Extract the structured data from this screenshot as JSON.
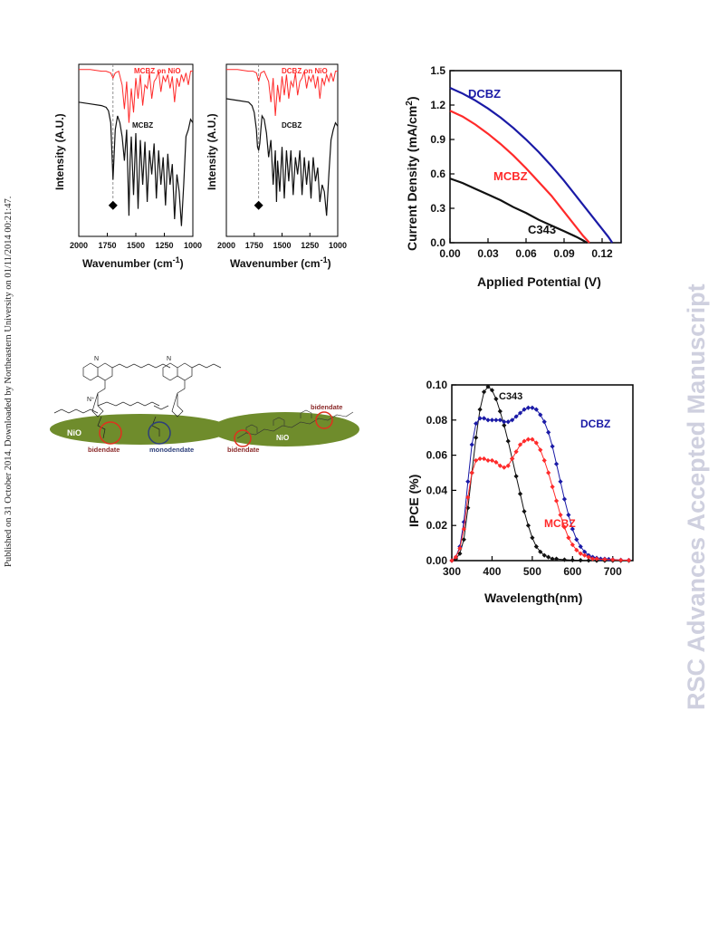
{
  "sidebar": {
    "left_note": "Published on 31 October 2014. Downloaded by Northeastern University on 01/11/2014 00:21:47.",
    "right_watermark": "RSC Advances Accepted Manuscript"
  },
  "colors": {
    "red": "#ff2a2a",
    "blue": "#1a1aa6",
    "black": "#111111",
    "nio_green": "#6f8c2c"
  },
  "chart_data": [
    {
      "type": "line",
      "id": "ftir-mcbz",
      "xlabel": "Wavenumber (cm⁻¹)",
      "ylabel": "Intensity (A.U.)",
      "xlim": [
        2000,
        1000
      ],
      "x_reversed": true,
      "xticks": [
        2000,
        1750,
        1500,
        1250,
        1000
      ],
      "yticks": [],
      "marker_x": 1700,
      "series": [
        {
          "name": "MCBZ on NiO",
          "color": "#ff2a2a",
          "x": [
            2000,
            1900,
            1800,
            1760,
            1720,
            1700,
            1680,
            1650,
            1620,
            1600,
            1580,
            1560,
            1540,
            1520,
            1500,
            1480,
            1460,
            1440,
            1420,
            1400,
            1380,
            1360,
            1340,
            1320,
            1300,
            1280,
            1260,
            1240,
            1220,
            1200,
            1180,
            1160,
            1140,
            1120,
            1100,
            1080,
            1060,
            1040,
            1020,
            1000
          ],
          "y": [
            0.97,
            0.97,
            0.96,
            0.96,
            0.95,
            0.92,
            0.95,
            0.96,
            0.88,
            0.74,
            0.9,
            0.66,
            0.86,
            0.72,
            0.92,
            0.8,
            0.94,
            0.76,
            0.88,
            0.86,
            0.95,
            0.8,
            0.9,
            0.92,
            0.96,
            0.84,
            0.93,
            0.9,
            0.94,
            0.86,
            0.93,
            0.78,
            0.92,
            0.87,
            0.94,
            0.9,
            0.95,
            0.88,
            0.96,
            0.96
          ]
        },
        {
          "name": "MCBZ",
          "color": "#111111",
          "x": [
            2000,
            1900,
            1800,
            1760,
            1740,
            1720,
            1710,
            1700,
            1690,
            1680,
            1660,
            1640,
            1620,
            1600,
            1580,
            1560,
            1550,
            1540,
            1520,
            1500,
            1480,
            1460,
            1440,
            1420,
            1400,
            1380,
            1360,
            1340,
            1320,
            1300,
            1280,
            1260,
            1240,
            1220,
            1200,
            1180,
            1160,
            1140,
            1120,
            1100,
            1080,
            1060,
            1040,
            1020,
            1000
          ],
          "y": [
            0.78,
            0.77,
            0.76,
            0.75,
            0.73,
            0.66,
            0.5,
            0.33,
            0.48,
            0.62,
            0.7,
            0.66,
            0.58,
            0.44,
            0.62,
            0.12,
            0.44,
            0.58,
            0.24,
            0.6,
            0.16,
            0.56,
            0.3,
            0.55,
            0.2,
            0.5,
            0.36,
            0.54,
            0.22,
            0.5,
            0.3,
            0.46,
            0.18,
            0.48,
            0.3,
            0.42,
            0.1,
            0.36,
            0.26,
            0.06,
            0.3,
            0.58,
            0.62,
            0.68,
            0.66
          ]
        }
      ],
      "annotations": [
        {
          "text": "MCBZ on NiO",
          "color": "#ff2a2a"
        },
        {
          "text": "MCBZ",
          "color": "#111111"
        }
      ]
    },
    {
      "type": "line",
      "id": "ftir-dcbz",
      "xlabel": "Wavenumber (cm⁻¹)",
      "ylabel": "Intensity (A.U.)",
      "xlim": [
        2000,
        1000
      ],
      "x_reversed": true,
      "xticks": [
        2000,
        1750,
        1500,
        1250,
        1000
      ],
      "yticks": [],
      "marker_x": 1710,
      "series": [
        {
          "name": "DCBZ on NiO",
          "color": "#ff2a2a",
          "x": [
            2000,
            1900,
            1800,
            1760,
            1730,
            1710,
            1690,
            1660,
            1620,
            1600,
            1580,
            1560,
            1540,
            1520,
            1500,
            1480,
            1460,
            1440,
            1420,
            1400,
            1380,
            1360,
            1340,
            1320,
            1300,
            1280,
            1260,
            1240,
            1220,
            1200,
            1180,
            1160,
            1140,
            1120,
            1100,
            1080,
            1060,
            1040,
            1020,
            1000
          ],
          "y": [
            0.97,
            0.97,
            0.96,
            0.96,
            0.95,
            0.9,
            0.95,
            0.96,
            0.9,
            0.78,
            0.92,
            0.7,
            0.88,
            0.78,
            0.93,
            0.82,
            0.94,
            0.8,
            0.9,
            0.87,
            0.95,
            0.82,
            0.9,
            0.92,
            0.96,
            0.86,
            0.93,
            0.9,
            0.94,
            0.86,
            0.93,
            0.8,
            0.92,
            0.88,
            0.94,
            0.9,
            0.95,
            0.9,
            0.96,
            0.96
          ]
        },
        {
          "name": "DCBZ",
          "color": "#111111",
          "x": [
            2000,
            1900,
            1800,
            1770,
            1750,
            1730,
            1720,
            1710,
            1700,
            1690,
            1680,
            1660,
            1640,
            1620,
            1600,
            1580,
            1560,
            1550,
            1540,
            1520,
            1500,
            1480,
            1460,
            1440,
            1420,
            1400,
            1380,
            1360,
            1340,
            1320,
            1300,
            1280,
            1260,
            1240,
            1220,
            1200,
            1180,
            1160,
            1140,
            1120,
            1100,
            1080,
            1060,
            1040,
            1020,
            1000
          ],
          "y": [
            0.8,
            0.79,
            0.78,
            0.76,
            0.72,
            0.62,
            0.52,
            0.5,
            0.54,
            0.62,
            0.7,
            0.68,
            0.6,
            0.46,
            0.56,
            0.3,
            0.5,
            0.2,
            0.44,
            0.26,
            0.52,
            0.22,
            0.5,
            0.32,
            0.5,
            0.24,
            0.46,
            0.36,
            0.5,
            0.24,
            0.46,
            0.3,
            0.44,
            0.22,
            0.46,
            0.32,
            0.4,
            0.2,
            0.3,
            0.26,
            0.12,
            0.36,
            0.56,
            0.62,
            0.66,
            0.64
          ]
        }
      ],
      "annotations": [
        {
          "text": "DCBZ on NiO",
          "color": "#ff2a2a"
        },
        {
          "text": "DCBZ",
          "color": "#111111"
        }
      ]
    },
    {
      "type": "line",
      "id": "jv",
      "xlabel": "Applied Potential (V)",
      "ylabel": "Current Density (mA/cm²)",
      "xlim": [
        0.0,
        0.135
      ],
      "ylim": [
        0.0,
        1.5
      ],
      "xticks": [
        "0.00",
        "0.03",
        "0.06",
        "0.09",
        "0.12"
      ],
      "yticks": [
        "0.0",
        "0.3",
        "0.6",
        "0.9",
        "1.2",
        "1.5"
      ],
      "series": [
        {
          "name": "DCBZ",
          "color": "#1a1aa6",
          "x": [
            0,
            0.01,
            0.02,
            0.03,
            0.04,
            0.05,
            0.06,
            0.07,
            0.08,
            0.09,
            0.1,
            0.11,
            0.12,
            0.125,
            0.128
          ],
          "y": [
            1.35,
            1.3,
            1.24,
            1.17,
            1.09,
            1.0,
            0.9,
            0.79,
            0.67,
            0.54,
            0.4,
            0.26,
            0.12,
            0.05,
            0.0
          ]
        },
        {
          "name": "MCBZ",
          "color": "#ff2a2a",
          "x": [
            0,
            0.01,
            0.02,
            0.03,
            0.04,
            0.05,
            0.06,
            0.07,
            0.08,
            0.09,
            0.1,
            0.105,
            0.11
          ],
          "y": [
            1.15,
            1.1,
            1.03,
            0.95,
            0.86,
            0.76,
            0.65,
            0.53,
            0.41,
            0.27,
            0.13,
            0.06,
            0.0
          ]
        },
        {
          "name": "C343",
          "color": "#111111",
          "x": [
            0,
            0.01,
            0.02,
            0.03,
            0.04,
            0.05,
            0.06,
            0.07,
            0.08,
            0.09,
            0.1,
            0.105,
            0.108
          ],
          "y": [
            0.56,
            0.52,
            0.47,
            0.42,
            0.37,
            0.31,
            0.26,
            0.2,
            0.15,
            0.1,
            0.05,
            0.02,
            0.0
          ]
        }
      ]
    },
    {
      "type": "scatter",
      "id": "ipce",
      "xlabel": "Wavelength(nm)",
      "ylabel": "IPCE (%)",
      "xlim": [
        300,
        750
      ],
      "ylim": [
        0.0,
        0.1
      ],
      "xticks": [
        "300",
        "400",
        "500",
        "600",
        "700"
      ],
      "yticks": [
        "0.00",
        "0.02",
        "0.04",
        "0.06",
        "0.08",
        "0.10"
      ],
      "series": [
        {
          "name": "C343",
          "color": "#111111",
          "x": [
            300,
            310,
            320,
            330,
            340,
            350,
            360,
            370,
            380,
            390,
            400,
            410,
            420,
            430,
            440,
            450,
            460,
            470,
            480,
            490,
            500,
            510,
            520,
            530,
            540,
            550,
            560,
            580,
            600,
            620,
            640,
            660,
            680,
            700,
            720,
            740
          ],
          "y": [
            0,
            0.001,
            0.004,
            0.012,
            0.03,
            0.05,
            0.07,
            0.086,
            0.096,
            0.099,
            0.097,
            0.092,
            0.085,
            0.077,
            0.068,
            0.058,
            0.048,
            0.038,
            0.028,
            0.02,
            0.013,
            0.008,
            0.005,
            0.003,
            0.002,
            0.001,
            0.001,
            0.0005,
            0.0003,
            0.0002,
            0.0001,
            0,
            0,
            0,
            0,
            0
          ]
        },
        {
          "name": "DCBZ",
          "color": "#1a1aa6",
          "x": [
            300,
            310,
            320,
            330,
            340,
            350,
            360,
            370,
            380,
            390,
            400,
            410,
            420,
            430,
            440,
            450,
            460,
            470,
            480,
            490,
            500,
            510,
            520,
            530,
            540,
            550,
            560,
            570,
            580,
            590,
            600,
            610,
            620,
            630,
            640,
            650,
            660,
            670,
            680,
            690,
            700,
            720,
            740
          ],
          "y": [
            0,
            0.002,
            0.008,
            0.022,
            0.045,
            0.066,
            0.078,
            0.081,
            0.081,
            0.08,
            0.08,
            0.08,
            0.08,
            0.079,
            0.079,
            0.08,
            0.082,
            0.084,
            0.086,
            0.087,
            0.087,
            0.086,
            0.083,
            0.079,
            0.073,
            0.065,
            0.055,
            0.045,
            0.035,
            0.026,
            0.018,
            0.012,
            0.008,
            0.005,
            0.003,
            0.002,
            0.0015,
            0.001,
            0.001,
            0.0008,
            0.0006,
            0.0004,
            0.0003
          ]
        },
        {
          "name": "MCBZ",
          "color": "#ff2a2a",
          "x": [
            300,
            310,
            320,
            330,
            340,
            350,
            360,
            370,
            380,
            390,
            400,
            410,
            420,
            430,
            440,
            450,
            460,
            470,
            480,
            490,
            500,
            510,
            520,
            530,
            540,
            550,
            560,
            570,
            580,
            590,
            600,
            610,
            620,
            630,
            640,
            650,
            660,
            680,
            700,
            720,
            740
          ],
          "y": [
            0,
            0.002,
            0.007,
            0.018,
            0.036,
            0.05,
            0.057,
            0.058,
            0.058,
            0.057,
            0.057,
            0.056,
            0.054,
            0.053,
            0.054,
            0.058,
            0.062,
            0.066,
            0.068,
            0.069,
            0.069,
            0.067,
            0.063,
            0.057,
            0.05,
            0.042,
            0.034,
            0.026,
            0.019,
            0.013,
            0.009,
            0.006,
            0.004,
            0.003,
            0.002,
            0.001,
            0.001,
            0.0007,
            0.0005,
            0.0003,
            0.0002
          ]
        }
      ]
    }
  ],
  "scheme": {
    "left": {
      "substrate": "NiO",
      "labels": [
        "bidendate",
        "monodendate"
      ]
    },
    "right": {
      "substrate": "NiO",
      "labels": [
        "bidendate",
        "bidendate"
      ]
    }
  }
}
